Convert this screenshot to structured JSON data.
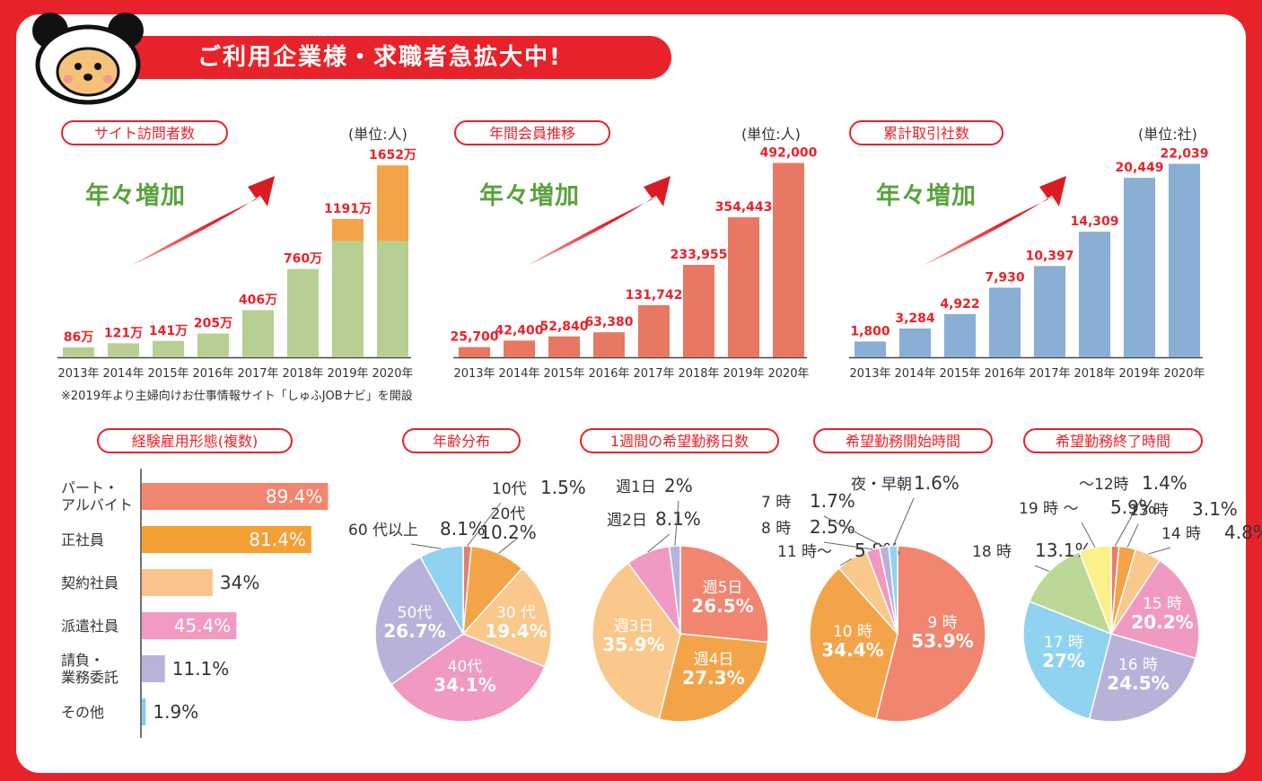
{
  "banner": {
    "title": "ご利用企業様・求職者急拡大中!"
  },
  "growth_label": "年々増加",
  "note": "※2019年より主婦向けお仕事情報サイト「しゅふJOBナビ」を開設",
  "colors": {
    "accent": "#e8222a",
    "green": "#b7cf93",
    "orange": "#f4a448",
    "salmon": "#e87863",
    "blue": "#8aaed4",
    "growth_text": "#5aa33c"
  },
  "chart_data": [
    {
      "type": "bar",
      "id": "visitors",
      "title": "サイト訪問者数",
      "unit": "(単位:人)",
      "categories": [
        "2013年",
        "2014年",
        "2015年",
        "2016年",
        "2017年",
        "2018年",
        "2019年",
        "2020年"
      ],
      "series": [
        {
          "values": [
            86,
            121,
            141,
            205,
            406,
            760,
            1000,
            1000
          ],
          "color": "#b7cf93"
        },
        {
          "values": [
            0,
            0,
            0,
            0,
            0,
            0,
            191,
            652
          ],
          "color": "#f4a448"
        }
      ],
      "data_labels": [
        "86万",
        "121万",
        "141万",
        "205万",
        "406万",
        "760万",
        "1191万",
        "1652万"
      ],
      "totals": [
        86,
        121,
        141,
        205,
        406,
        760,
        1191,
        1652
      ],
      "ylim": [
        0,
        1700
      ]
    },
    {
      "type": "bar",
      "id": "members",
      "title": "年間会員推移",
      "unit": "(単位:人)",
      "categories": [
        "2013年",
        "2014年",
        "2015年",
        "2016年",
        "2017年",
        "2018年",
        "2019年",
        "2020年"
      ],
      "series": [
        {
          "values": [
            25700,
            42400,
            52840,
            63380,
            131742,
            233955,
            354443,
            492000
          ],
          "color": "#e87863"
        }
      ],
      "data_labels": [
        "25,700",
        "42,400",
        "52,840",
        "63,380",
        "131,742",
        "233,955",
        "354,443",
        "492,000"
      ],
      "totals": [
        25700,
        42400,
        52840,
        63380,
        131742,
        233955,
        354443,
        492000
      ],
      "ylim": [
        0,
        500000
      ]
    },
    {
      "type": "bar",
      "id": "clients",
      "title": "累計取引社数",
      "unit": "(単位:社)",
      "categories": [
        "2013年",
        "2014年",
        "2015年",
        "2016年",
        "2017年",
        "2018年",
        "2019年",
        "2020年"
      ],
      "series": [
        {
          "values": [
            1800,
            3284,
            4922,
            7930,
            10397,
            14309,
            20449,
            22039
          ],
          "color": "#8aaed4"
        }
      ],
      "data_labels": [
        "1,800",
        "3,284",
        "4,922",
        "7,930",
        "10,397",
        "14,309",
        "20,449",
        "22,039"
      ],
      "totals": [
        1800,
        3284,
        4922,
        7930,
        10397,
        14309,
        20449,
        22039
      ],
      "ylim": [
        0,
        22500
      ]
    },
    {
      "type": "hbar",
      "id": "employment",
      "title": "経験雇用形態(複数)",
      "categories": [
        "パート・\nアルバイト",
        "正社員",
        "契約社員",
        "派遣社員",
        "請負・\n業務委託",
        "その他"
      ],
      "values": [
        89.4,
        81.4,
        34,
        45.4,
        11.1,
        1.9
      ],
      "labels": [
        "89.4%",
        "81.4%",
        "34%",
        "45.4%",
        "11.1%",
        "1.9%"
      ],
      "colors": [
        "#f2856f",
        "#f4a034",
        "#f8c48c",
        "#f19ac4",
        "#b8b3da",
        "#8ccde8"
      ],
      "xlim": [
        0,
        100
      ]
    },
    {
      "type": "pie",
      "id": "age",
      "title": "年齢分布",
      "slices": [
        {
          "label": "10代",
          "value": 1.5,
          "text": "1.5%",
          "color": "#e87d6a"
        },
        {
          "label": "20代",
          "value": 10.2,
          "text": "10.2%",
          "color": "#f4a448"
        },
        {
          "label": "30 代",
          "value": 19.4,
          "text": "19.4%",
          "color": "#f9c88a"
        },
        {
          "label": "40代",
          "value": 34.1,
          "text": "34.1%",
          "color": "#f09ac3"
        },
        {
          "label": "50代",
          "value": 26.7,
          "text": "26.7%",
          "color": "#b8b2da"
        },
        {
          "label": "60 代以上",
          "value": 8.1,
          "text": "8.1%",
          "color": "#8fd3f0"
        }
      ]
    },
    {
      "type": "pie",
      "id": "days",
      "title": "1週間の希望勤務日数",
      "slices": [
        {
          "label": "週5日",
          "value": 26.5,
          "text": "26.5%",
          "color": "#f2856f"
        },
        {
          "label": "週4日",
          "value": 27.3,
          "text": "27.3%",
          "color": "#f4a448"
        },
        {
          "label": "週3日",
          "value": 35.9,
          "text": "35.9%",
          "color": "#f9c88a"
        },
        {
          "label": "週2日",
          "value": 8.1,
          "text": "8.1%",
          "color": "#f09ac3"
        },
        {
          "label": "週1日",
          "value": 2,
          "text": "2%",
          "color": "#b8b2da"
        }
      ]
    },
    {
      "type": "pie",
      "id": "start",
      "title": "希望勤務開始時間",
      "slices": [
        {
          "label": "9 時",
          "value": 53.9,
          "text": "53.9%",
          "color": "#f2856f"
        },
        {
          "label": "10 時",
          "value": 34.4,
          "text": "34.4%",
          "color": "#f4a448"
        },
        {
          "label": "11 時〜",
          "value": 5.8,
          "text": "5.8%",
          "color": "#f9c88a"
        },
        {
          "label": "8 時",
          "value": 2.5,
          "text": "2.5%",
          "color": "#f09ac3"
        },
        {
          "label": "7 時",
          "value": 1.7,
          "text": "1.7%",
          "color": "#b8b2da"
        },
        {
          "label": "夜・早朝",
          "value": 1.6,
          "text": "1.6%",
          "color": "#8fd3f0"
        }
      ]
    },
    {
      "type": "pie",
      "id": "end",
      "title": "希望勤務終了時間",
      "slices": [
        {
          "label": "〜12時",
          "value": 1.4,
          "text": "1.4%",
          "color": "#e87d6a"
        },
        {
          "label": "13 時",
          "value": 3.1,
          "text": "3.1%",
          "color": "#f4a448"
        },
        {
          "label": "14 時",
          "value": 4.8,
          "text": "4.8%",
          "color": "#f9c88a"
        },
        {
          "label": "15 時",
          "value": 20.2,
          "text": "20.2%",
          "color": "#f09ac3"
        },
        {
          "label": "16 時",
          "value": 24.5,
          "text": "24.5%",
          "color": "#b8b2da"
        },
        {
          "label": "17 時",
          "value": 27,
          "text": "27%",
          "color": "#8fd3f0"
        },
        {
          "label": "18 時",
          "value": 13.1,
          "text": "13.1%",
          "color": "#bcd896"
        },
        {
          "label": "19 時 〜",
          "value": 5.9,
          "text": "5.9%",
          "color": "#fbf08a"
        }
      ]
    }
  ]
}
